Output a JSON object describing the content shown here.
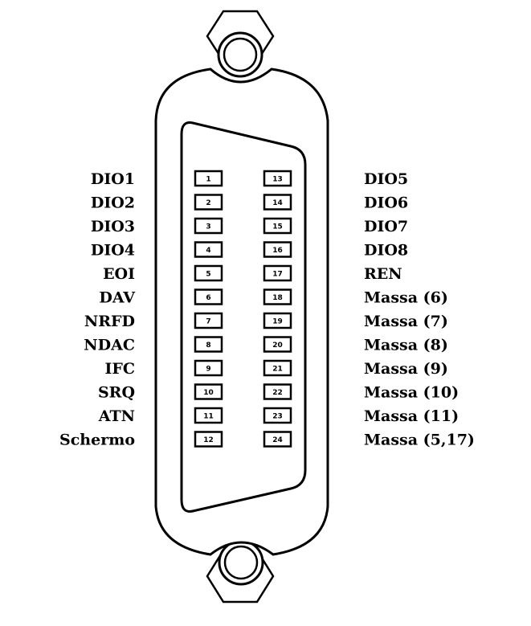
{
  "connector": {
    "left_labels": [
      "DIO1",
      "DIO2",
      "DIO3",
      "DIO4",
      "EOI",
      "DAV",
      "NRFD",
      "NDAC",
      "IFC",
      "SRQ",
      "ATN",
      "Schermo"
    ],
    "right_labels": [
      "DIO5",
      "DIO6",
      "DIO7",
      "DIO8",
      "REN",
      "Massa (6)",
      "Massa (7)",
      "Massa (8)",
      "Massa (9)",
      "Massa (10)",
      "Massa (11)",
      "Massa (5,17)"
    ],
    "left_pins": [
      "1",
      "2",
      "3",
      "4",
      "5",
      "6",
      "7",
      "8",
      "9",
      "10",
      "11",
      "12"
    ],
    "right_pins": [
      "13",
      "14",
      "15",
      "16",
      "17",
      "18",
      "19",
      "20",
      "21",
      "22",
      "23",
      "24"
    ]
  }
}
